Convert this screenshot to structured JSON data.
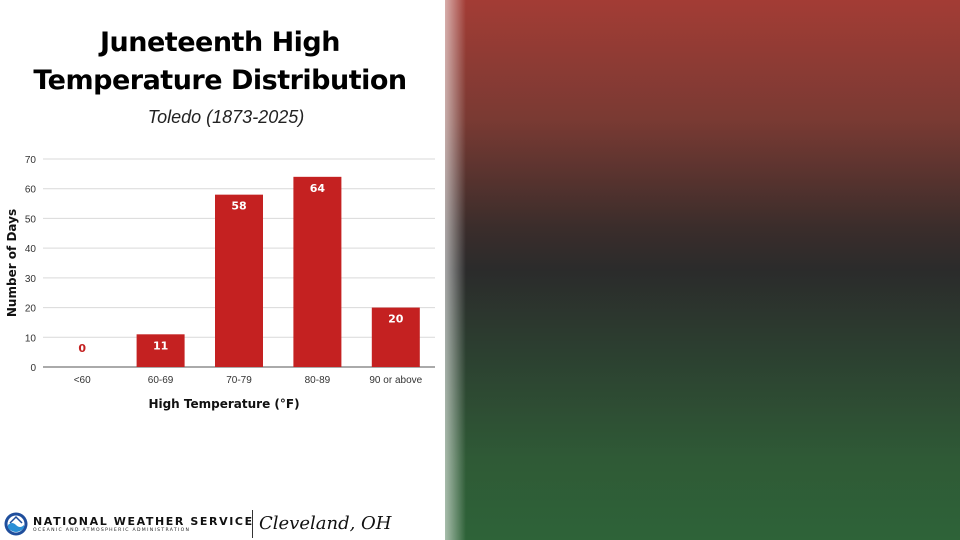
{
  "title_line1": "Juneteenth High",
  "title_line2": "Temperature Distribution",
  "subtitle": "Toledo (1873-2025)",
  "footer": {
    "agency": "NATIONAL WEATHER SERVICE",
    "agency_sub": "OCEANIC AND ATMOSPHERIC ADMINISTRATION",
    "office": "Cleveland, OH",
    "logo_icon": "noaa-logo-icon"
  },
  "colors": {
    "bar": "#c42121",
    "label_on_bar": "#ffffff",
    "label_zero": "#c42121",
    "grid": "#d9d9d9",
    "panel_top": "#a33c35",
    "panel_mid": "#2b2b2b",
    "panel_bottom": "#2e6338"
  },
  "chart_data": {
    "type": "bar",
    "categories": [
      "<60",
      "60-69",
      "70-79",
      "80-89",
      "90 or above"
    ],
    "values": [
      0,
      11,
      58,
      64,
      20
    ],
    "xlabel": "High Temperature (°F)",
    "ylabel": "Number of Days",
    "ylim": [
      0,
      70
    ],
    "yticks": [
      0,
      10,
      20,
      30,
      40,
      50,
      60,
      70
    ],
    "grid": true,
    "legend": "none"
  }
}
